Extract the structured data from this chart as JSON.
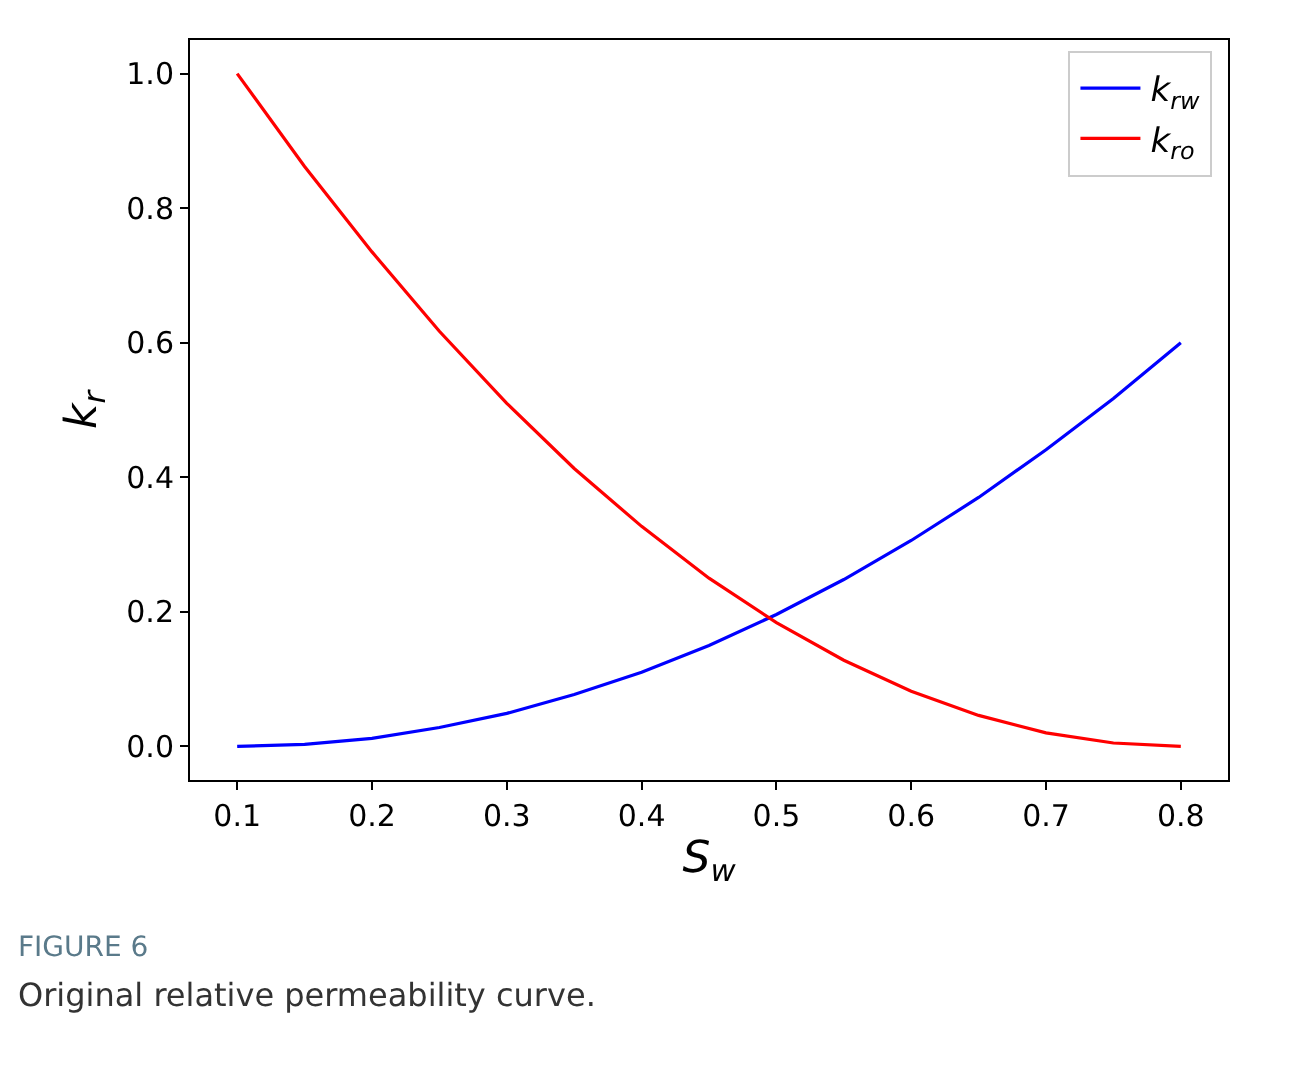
{
  "chart_data": {
    "type": "line",
    "xlabel": "S$_{w}$",
    "ylabel": "k$_{r}$",
    "x": [
      0.1,
      0.15,
      0.2,
      0.25,
      0.3,
      0.35,
      0.4,
      0.45,
      0.5,
      0.55,
      0.6,
      0.65,
      0.7,
      0.75,
      0.8
    ],
    "series": [
      {
        "name": "k$_{rw}$",
        "color": "#0000ff",
        "values": [
          0.0,
          0.003,
          0.012,
          0.028,
          0.049,
          0.077,
          0.11,
          0.15,
          0.196,
          0.248,
          0.306,
          0.37,
          0.441,
          0.517,
          0.6
        ]
      },
      {
        "name": "k$_{ro}$",
        "color": "#ff0000",
        "values": [
          1.0,
          0.862,
          0.735,
          0.617,
          0.51,
          0.413,
          0.327,
          0.25,
          0.184,
          0.128,
          0.082,
          0.046,
          0.02,
          0.005,
          0.0
        ]
      }
    ],
    "xlim": [
      0.065,
      0.835
    ],
    "ylim": [
      -0.05,
      1.05
    ],
    "xticks": [
      {
        "value": 0.1,
        "label": "0.1"
      },
      {
        "value": 0.2,
        "label": "0.2"
      },
      {
        "value": 0.3,
        "label": "0.3"
      },
      {
        "value": 0.4,
        "label": "0.4"
      },
      {
        "value": 0.5,
        "label": "0.5"
      },
      {
        "value": 0.6,
        "label": "0.6"
      },
      {
        "value": 0.7,
        "label": "0.7"
      },
      {
        "value": 0.8,
        "label": "0.8"
      }
    ],
    "yticks": [
      {
        "value": 0.0,
        "label": "0.0"
      },
      {
        "value": 0.2,
        "label": "0.2"
      },
      {
        "value": 0.4,
        "label": "0.4"
      },
      {
        "value": 0.6,
        "label": "0.6"
      },
      {
        "value": 0.8,
        "label": "0.8"
      },
      {
        "value": 1.0,
        "label": "1.0"
      }
    ],
    "legend": "top right",
    "grid": false,
    "marker": "none",
    "line_style": "solid",
    "annotations": [
      "FIGURE 6",
      "Original relative permeability curve."
    ]
  }
}
